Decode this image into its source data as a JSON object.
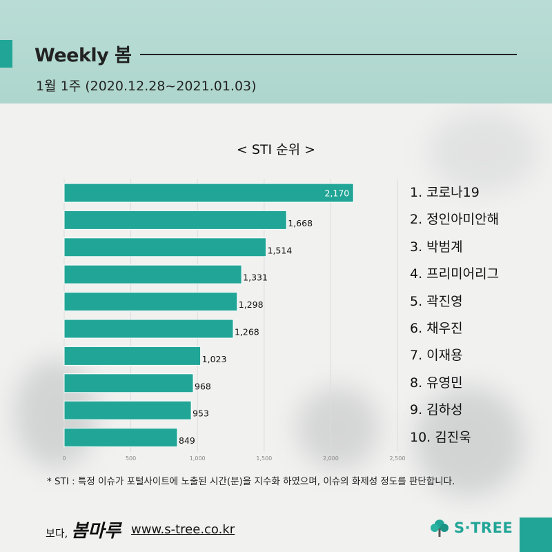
{
  "header": {
    "title": "Weekly 봄",
    "subtitle": "1월 1주 (2020.12.28~2021.01.03)"
  },
  "chart_data": {
    "type": "bar",
    "orientation": "horizontal",
    "title": "< STI 순위 >",
    "categories": [
      "코로나19",
      "정인아미안해",
      "박범계",
      "프리미어리그",
      "곽진영",
      "채우진",
      "이재용",
      "유영민",
      "김하성",
      "김진욱"
    ],
    "values": [
      2170,
      1668,
      1514,
      1331,
      1298,
      1268,
      1023,
      968,
      953,
      849
    ],
    "value_labels": [
      "2,170",
      "1,668",
      "1,514",
      "1,331",
      "1,298",
      "1,268",
      "1,023",
      "968",
      "953",
      "849"
    ],
    "xlim": [
      0,
      2500
    ],
    "xticks": [
      0,
      500,
      1000,
      1500,
      2000,
      2500
    ],
    "xtick_labels": [
      "0",
      "500",
      "1,000",
      "1,500",
      "2,000",
      "2,500"
    ],
    "grid": true,
    "bar_color": "#21a596"
  },
  "ranking": [
    "1. 코로나19",
    "2. 정인아미안해",
    "3. 박범계",
    "4. 프리미어리그",
    "5. 곽진영",
    "6. 채우진",
    "7. 이재용",
    "8. 유영민",
    "9. 김하성",
    "10. 김진욱"
  ],
  "footnote": "* STI : 특정 이슈가 포털사이트에 노출된 시간(분)을 지수화 하였으며, 이슈의 화제성 정도를 판단합니다.",
  "brand": {
    "prefix": "보다,",
    "name": "봄마루"
  },
  "website": "www.s-tree.co.kr",
  "logo_text": "S·TREE",
  "colors": {
    "accent": "#21a596",
    "header_bg": "#b9ddd6"
  }
}
